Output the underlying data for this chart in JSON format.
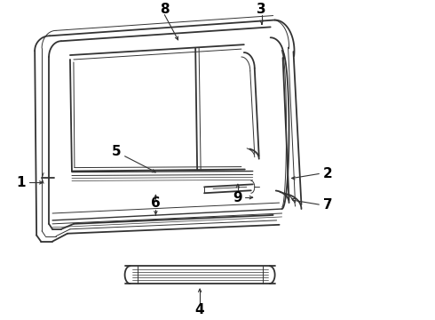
{
  "background_color": "#ffffff",
  "line_color": "#333333",
  "label_color": "#000000",
  "label_fontsize": 11,
  "figsize": [
    4.9,
    3.6
  ],
  "dpi": 100
}
